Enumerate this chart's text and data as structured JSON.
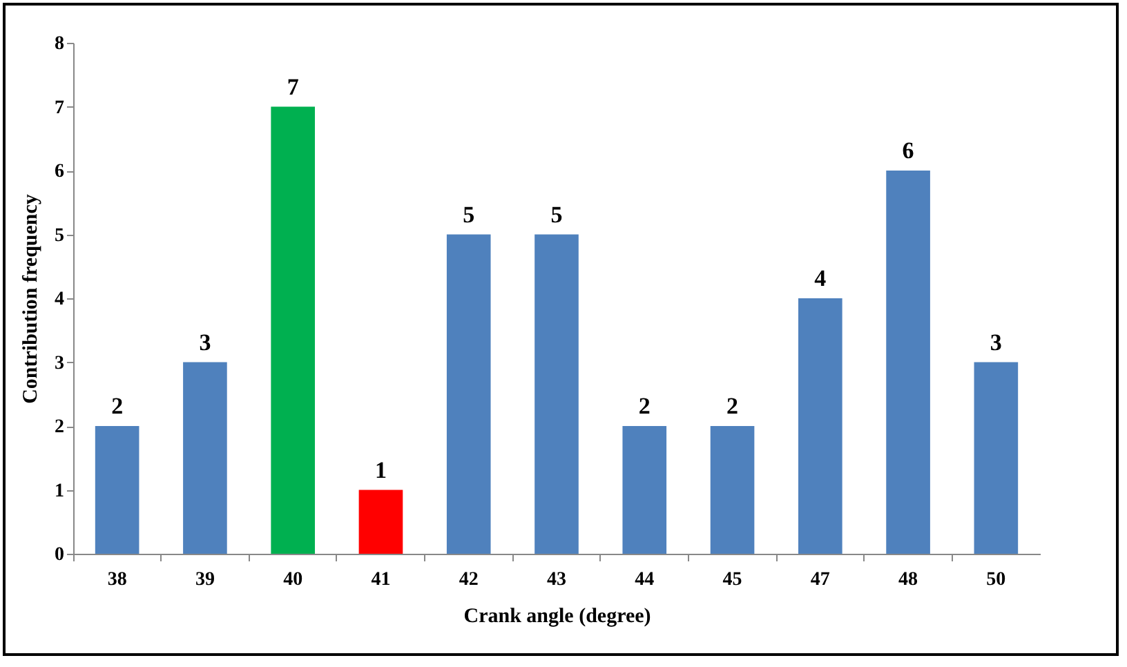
{
  "chart_data": {
    "type": "bar",
    "xlabel": "Crank angle (degree)",
    "ylabel": "Contribution frequency",
    "categories": [
      "38",
      "39",
      "40",
      "41",
      "42",
      "43",
      "44",
      "45",
      "47",
      "48",
      "50"
    ],
    "values": [
      2,
      3,
      7,
      1,
      5,
      5,
      2,
      2,
      4,
      6,
      3
    ],
    "colors": [
      "#4f81bd",
      "#4f81bd",
      "#00b050",
      "#ff0000",
      "#4f81bd",
      "#4f81bd",
      "#4f81bd",
      "#4f81bd",
      "#4f81bd",
      "#4f81bd",
      "#4f81bd"
    ],
    "ylim": [
      0,
      8
    ],
    "yticks": [
      0,
      1,
      2,
      3,
      4,
      5,
      6,
      7,
      8
    ],
    "data_labels": true
  }
}
